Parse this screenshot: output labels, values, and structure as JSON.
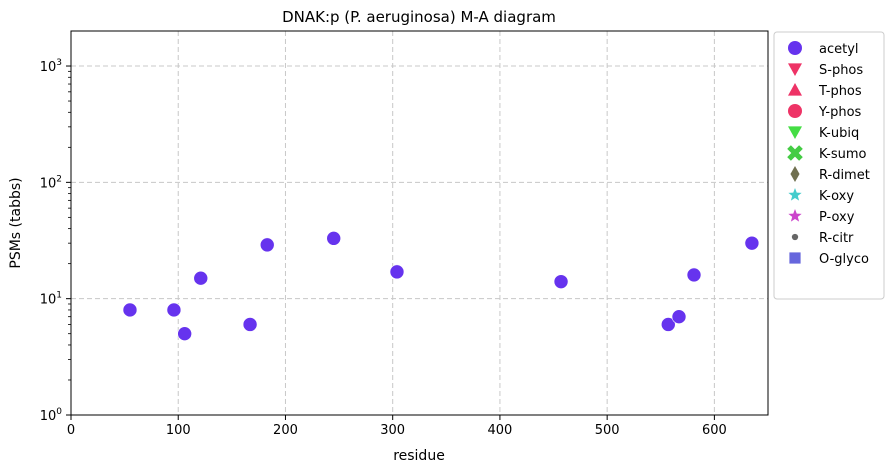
{
  "chart_data": {
    "type": "scatter",
    "title": "DNAK:p (P. aeruginosa) M-A diagram",
    "xlabel": "residue",
    "ylabel": "PSMs (tabbs)",
    "xlim": [
      0,
      650
    ],
    "ylim": [
      1,
      2000
    ],
    "yscale": "log",
    "x_ticks": [
      0,
      100,
      200,
      300,
      400,
      500,
      600
    ],
    "y_ticks": [
      {
        "value": 1,
        "base": "10",
        "exp": "0"
      },
      {
        "value": 10,
        "base": "10",
        "exp": "1"
      },
      {
        "value": 100,
        "base": "10",
        "exp": "2"
      },
      {
        "value": 1000,
        "base": "10",
        "exp": "3"
      }
    ],
    "grid": true,
    "legend_position": "outside-right",
    "series": [
      {
        "name": "acetyl",
        "marker": "circle",
        "color": "#6633ee",
        "points": [
          {
            "x": 55,
            "y": 8
          },
          {
            "x": 96,
            "y": 8
          },
          {
            "x": 106,
            "y": 5
          },
          {
            "x": 121,
            "y": 15
          },
          {
            "x": 167,
            "y": 6
          },
          {
            "x": 183,
            "y": 29
          },
          {
            "x": 245,
            "y": 33
          },
          {
            "x": 304,
            "y": 17
          },
          {
            "x": 457,
            "y": 14
          },
          {
            "x": 557,
            "y": 6
          },
          {
            "x": 567,
            "y": 7
          },
          {
            "x": 581,
            "y": 16
          },
          {
            "x": 635,
            "y": 30
          }
        ]
      },
      {
        "name": "S-phos",
        "marker": "triangle-down",
        "color": "#ee3366",
        "points": []
      },
      {
        "name": "T-phos",
        "marker": "triangle-up",
        "color": "#ee3366",
        "points": []
      },
      {
        "name": "Y-phos",
        "marker": "circle",
        "color": "#ee3366",
        "points": []
      },
      {
        "name": "K-ubiq",
        "marker": "triangle-down",
        "color": "#44dd44",
        "points": []
      },
      {
        "name": "K-sumo",
        "marker": "x",
        "color": "#44cc44",
        "points": []
      },
      {
        "name": "R-dimet",
        "marker": "diamond",
        "color": "#707050",
        "points": []
      },
      {
        "name": "K-oxy",
        "marker": "star",
        "color": "#44cccc",
        "points": []
      },
      {
        "name": "P-oxy",
        "marker": "star",
        "color": "#cc44cc",
        "points": []
      },
      {
        "name": "R-citr",
        "marker": "dot",
        "color": "#666666",
        "points": []
      },
      {
        "name": "O-glyco",
        "marker": "square",
        "color": "#6666dd",
        "points": []
      }
    ]
  }
}
